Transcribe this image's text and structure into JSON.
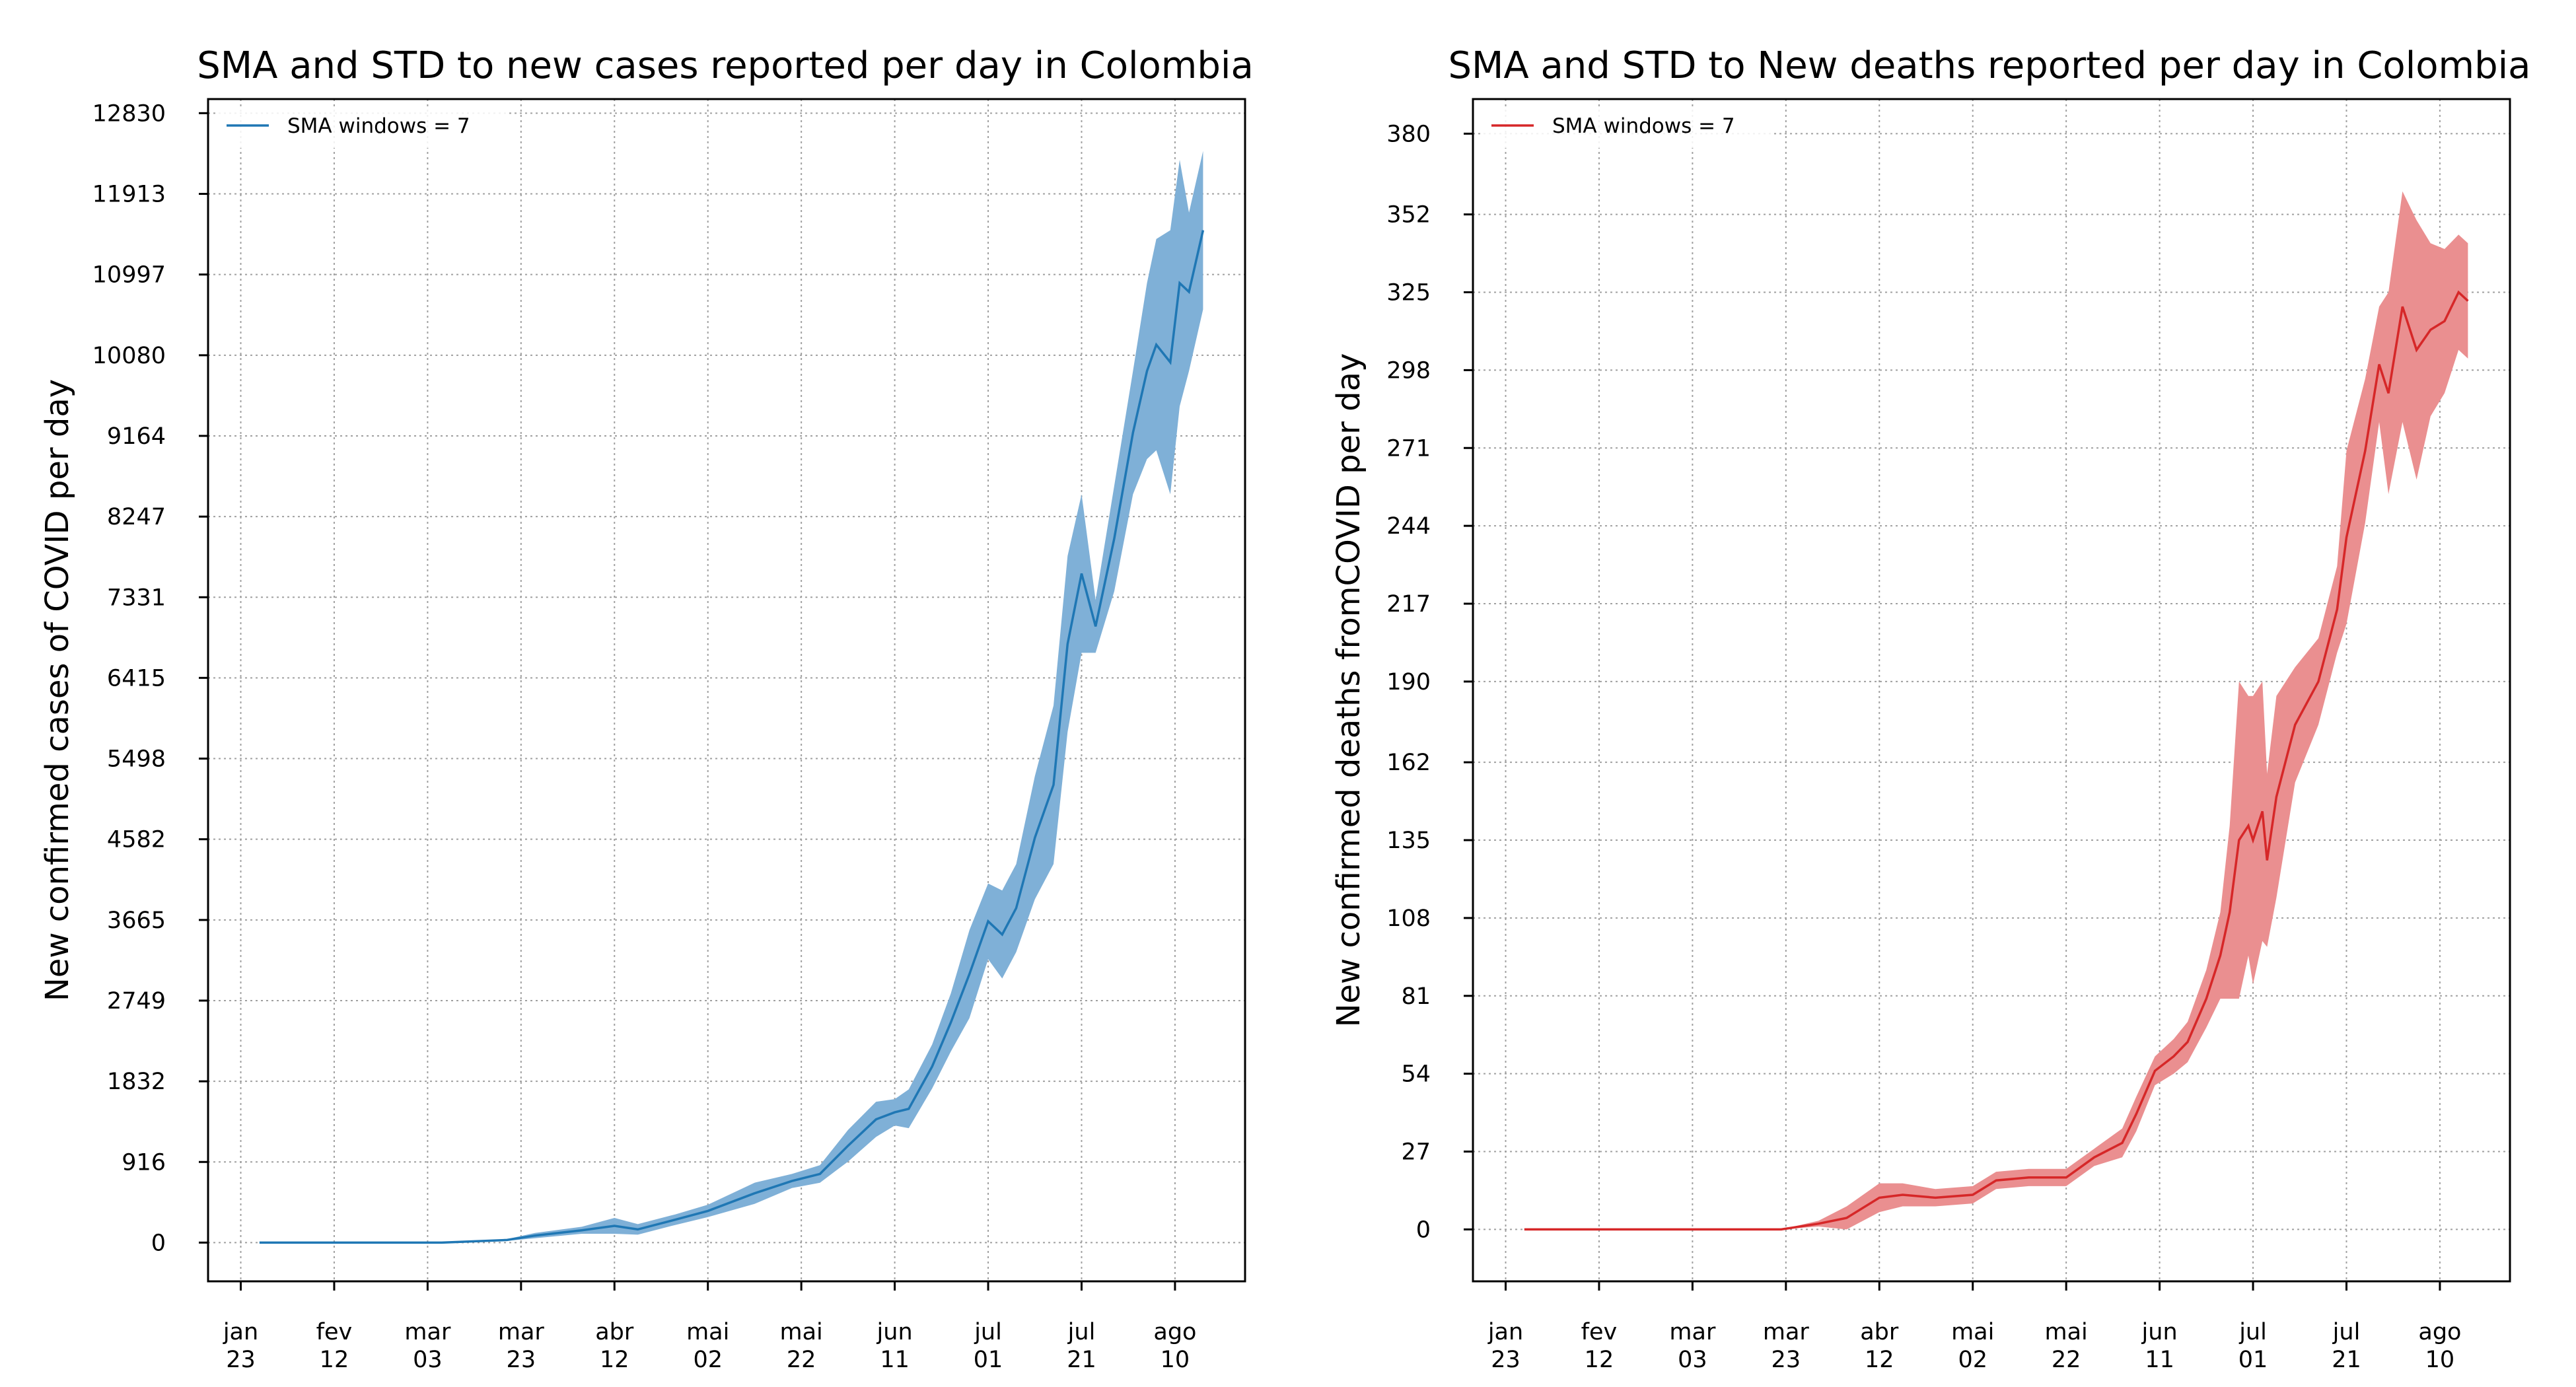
{
  "chart_data": [
    {
      "type": "line",
      "title": "SMA and STD to new cases reported per day in Colombia",
      "xlabel": "",
      "ylabel": "New confirmed cases of COVID per day",
      "color": "#1f77b4",
      "band_color": "#7fb0d7",
      "legend": {
        "label": "SMA windows = 7",
        "position": "upper-left"
      },
      "grid": true,
      "xlim": [
        "2020-01-16",
        "2020-08-25"
      ],
      "ylim": [
        -440,
        12990
      ],
      "xticks": [
        {
          "date": "2020-01-23",
          "label": [
            "jan",
            "23"
          ]
        },
        {
          "date": "2020-02-12",
          "label": [
            "fev",
            "12"
          ]
        },
        {
          "date": "2020-03-03",
          "label": [
            "mar",
            "03"
          ]
        },
        {
          "date": "2020-03-23",
          "label": [
            "mar",
            "23"
          ]
        },
        {
          "date": "2020-04-12",
          "label": [
            "abr",
            "12"
          ]
        },
        {
          "date": "2020-05-02",
          "label": [
            "mai",
            "02"
          ]
        },
        {
          "date": "2020-05-22",
          "label": [
            "mai",
            "22"
          ]
        },
        {
          "date": "2020-06-11",
          "label": [
            "jun",
            "11"
          ]
        },
        {
          "date": "2020-07-01",
          "label": [
            "jul",
            "01"
          ]
        },
        {
          "date": "2020-07-21",
          "label": [
            "jul",
            "21"
          ]
        },
        {
          "date": "2020-08-10",
          "label": [
            "ago",
            "10"
          ]
        }
      ],
      "yticks": [
        0,
        916,
        1832,
        2749,
        3665,
        4582,
        5498,
        6415,
        7331,
        8247,
        9164,
        10080,
        10997,
        11913,
        12830
      ],
      "series": [
        {
          "name": "SMA windows = 7",
          "points": [
            {
              "x": "2020-01-27",
              "y": 0,
              "std": 0
            },
            {
              "x": "2020-03-06",
              "y": 0,
              "std": 0
            },
            {
              "x": "2020-03-20",
              "y": 30,
              "std": 10
            },
            {
              "x": "2020-03-26",
              "y": 80,
              "std": 30
            },
            {
              "x": "2020-04-05",
              "y": 140,
              "std": 40
            },
            {
              "x": "2020-04-12",
              "y": 190,
              "std": 90
            },
            {
              "x": "2020-04-17",
              "y": 150,
              "std": 60
            },
            {
              "x": "2020-04-25",
              "y": 260,
              "std": 60
            },
            {
              "x": "2020-05-02",
              "y": 360,
              "std": 70
            },
            {
              "x": "2020-05-12",
              "y": 560,
              "std": 120
            },
            {
              "x": "2020-05-20",
              "y": 700,
              "std": 80
            },
            {
              "x": "2020-05-26",
              "y": 780,
              "std": 100
            },
            {
              "x": "2020-06-01",
              "y": 1100,
              "std": 180
            },
            {
              "x": "2020-06-07",
              "y": 1400,
              "std": 200
            },
            {
              "x": "2020-06-11",
              "y": 1480,
              "std": 150
            },
            {
              "x": "2020-06-14",
              "y": 1520,
              "std": 220
            },
            {
              "x": "2020-06-19",
              "y": 2000,
              "std": 250
            },
            {
              "x": "2020-06-23",
              "y": 2500,
              "std": 330
            },
            {
              "x": "2020-06-27",
              "y": 3050,
              "std": 500
            },
            {
              "x": "2020-07-01",
              "y": 3650,
              "std": 430
            },
            {
              "x": "2020-07-04",
              "y": 3500,
              "std": 500
            },
            {
              "x": "2020-07-07",
              "y": 3800,
              "std": 500
            },
            {
              "x": "2020-07-11",
              "y": 4600,
              "std": 700
            },
            {
              "x": "2020-07-15",
              "y": 5200,
              "std": 900
            },
            {
              "x": "2020-07-18",
              "y": 6800,
              "std": 1000
            },
            {
              "x": "2020-07-21",
              "y": 7600,
              "std": 900
            },
            {
              "x": "2020-07-24",
              "y": 7000,
              "std": 300
            },
            {
              "x": "2020-07-28",
              "y": 8000,
              "std": 600
            },
            {
              "x": "2020-08-01",
              "y": 9200,
              "std": 700
            },
            {
              "x": "2020-08-04",
              "y": 9900,
              "std": 1000
            },
            {
              "x": "2020-08-06",
              "y": 10200,
              "std": 1200
            },
            {
              "x": "2020-08-09",
              "y": 10000,
              "std": 1500
            },
            {
              "x": "2020-08-11",
              "y": 10900,
              "std": 1400
            },
            {
              "x": "2020-08-13",
              "y": 10800,
              "std": 900
            },
            {
              "x": "2020-08-16",
              "y": 11500,
              "std": 900
            }
          ]
        }
      ]
    },
    {
      "type": "line",
      "title": "SMA and STD to New deaths reported per day in Colombia",
      "xlabel": "",
      "ylabel": "New confirmed deaths fromCOVID per day",
      "color": "#d62728",
      "band_color": "#ea8f90",
      "legend": {
        "label": "SMA windows = 7",
        "position": "upper-left"
      },
      "grid": true,
      "xlim": [
        "2020-01-16",
        "2020-08-25"
      ],
      "ylim": [
        -18,
        392
      ],
      "xticks": [
        {
          "date": "2020-01-23",
          "label": [
            "jan",
            "23"
          ]
        },
        {
          "date": "2020-02-12",
          "label": [
            "fev",
            "12"
          ]
        },
        {
          "date": "2020-03-03",
          "label": [
            "mar",
            "03"
          ]
        },
        {
          "date": "2020-03-23",
          "label": [
            "mar",
            "23"
          ]
        },
        {
          "date": "2020-04-12",
          "label": [
            "abr",
            "12"
          ]
        },
        {
          "date": "2020-05-02",
          "label": [
            "mai",
            "02"
          ]
        },
        {
          "date": "2020-05-22",
          "label": [
            "mai",
            "22"
          ]
        },
        {
          "date": "2020-06-11",
          "label": [
            "jun",
            "11"
          ]
        },
        {
          "date": "2020-07-01",
          "label": [
            "jul",
            "01"
          ]
        },
        {
          "date": "2020-07-21",
          "label": [
            "jul",
            "21"
          ]
        },
        {
          "date": "2020-08-10",
          "label": [
            "ago",
            "10"
          ]
        }
      ],
      "yticks": [
        0,
        27,
        54,
        81,
        108,
        135,
        162,
        190,
        217,
        244,
        271,
        298,
        325,
        352,
        380
      ],
      "series": [
        {
          "name": "SMA windows = 7",
          "points": [
            {
              "x": "2020-01-27",
              "y": 0,
              "std": 0
            },
            {
              "x": "2020-03-22",
              "y": 0,
              "std": 0
            },
            {
              "x": "2020-03-30",
              "y": 2,
              "std": 1
            },
            {
              "x": "2020-04-05",
              "y": 4,
              "std": 4
            },
            {
              "x": "2020-04-12",
              "y": 11,
              "std": 5
            },
            {
              "x": "2020-04-17",
              "y": 12,
              "std": 4
            },
            {
              "x": "2020-04-24",
              "y": 11,
              "std": 3
            },
            {
              "x": "2020-05-02",
              "y": 12,
              "std": 3
            },
            {
              "x": "2020-05-07",
              "y": 17,
              "std": 3
            },
            {
              "x": "2020-05-14",
              "y": 18,
              "std": 3
            },
            {
              "x": "2020-05-22",
              "y": 18,
              "std": 3
            },
            {
              "x": "2020-05-28",
              "y": 25,
              "std": 3
            },
            {
              "x": "2020-06-03",
              "y": 30,
              "std": 5
            },
            {
              "x": "2020-06-06",
              "y": 40,
              "std": 6
            },
            {
              "x": "2020-06-10",
              "y": 55,
              "std": 5
            },
            {
              "x": "2020-06-14",
              "y": 60,
              "std": 6
            },
            {
              "x": "2020-06-17",
              "y": 65,
              "std": 7
            },
            {
              "x": "2020-06-21",
              "y": 80,
              "std": 10
            },
            {
              "x": "2020-06-24",
              "y": 95,
              "std": 15
            },
            {
              "x": "2020-06-26",
              "y": 110,
              "std": 30
            },
            {
              "x": "2020-06-28",
              "y": 135,
              "std": 55
            },
            {
              "x": "2020-06-30",
              "y": 140,
              "std": 45
            },
            {
              "x": "2020-07-01",
              "y": 135,
              "std": 50
            },
            {
              "x": "2020-07-03",
              "y": 145,
              "std": 45
            },
            {
              "x": "2020-07-04",
              "y": 128,
              "std": 30
            },
            {
              "x": "2020-07-06",
              "y": 150,
              "std": 35
            },
            {
              "x": "2020-07-10",
              "y": 175,
              "std": 20
            },
            {
              "x": "2020-07-15",
              "y": 190,
              "std": 15
            },
            {
              "x": "2020-07-19",
              "y": 215,
              "std": 15
            },
            {
              "x": "2020-07-21",
              "y": 240,
              "std": 30
            },
            {
              "x": "2020-07-25",
              "y": 270,
              "std": 25
            },
            {
              "x": "2020-07-28",
              "y": 300,
              "std": 20
            },
            {
              "x": "2020-07-30",
              "y": 290,
              "std": 35
            },
            {
              "x": "2020-08-02",
              "y": 320,
              "std": 40
            },
            {
              "x": "2020-08-05",
              "y": 305,
              "std": 45
            },
            {
              "x": "2020-08-08",
              "y": 312,
              "std": 30
            },
            {
              "x": "2020-08-11",
              "y": 315,
              "std": 25
            },
            {
              "x": "2020-08-14",
              "y": 325,
              "std": 20
            },
            {
              "x": "2020-08-16",
              "y": 322,
              "std": 20
            }
          ]
        }
      ]
    }
  ]
}
